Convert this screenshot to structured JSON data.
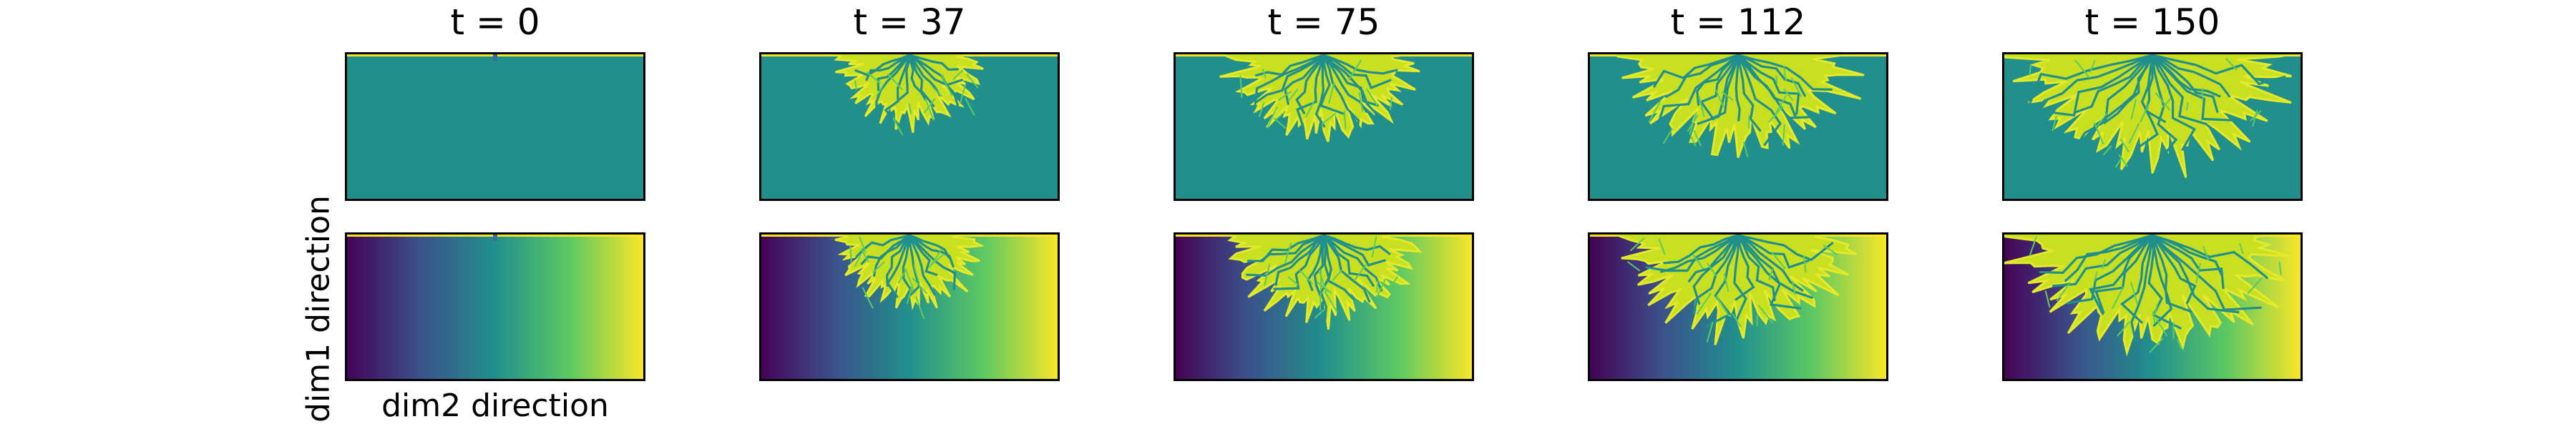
{
  "figure": {
    "type": "image_grid",
    "columns": [
      {
        "title": "t = 0",
        "t": 0,
        "growth": 0.0
      },
      {
        "title": "t = 37",
        "t": 37,
        "growth": 0.42
      },
      {
        "title": "t = 75",
        "t": 75,
        "growth": 0.62
      },
      {
        "title": "t = 112",
        "t": 112,
        "growth": 0.8
      },
      {
        "title": "t = 150",
        "t": 150,
        "growth": 1.0
      }
    ],
    "rows": [
      {
        "name": "uniform-background",
        "background": "#21908d"
      },
      {
        "name": "gradient-background",
        "colormap": "viridis"
      }
    ],
    "xlabel": "dim2 direction",
    "ylabel": "dim1 direction",
    "colors": {
      "uniform": "#21908d",
      "pattern": "#c8e020",
      "pattern_light": "#e4ea2a",
      "channel": "#5ec962",
      "top_strip": "#fde725",
      "viridis": [
        "#440154",
        "#3b528b",
        "#21908d",
        "#5ec962",
        "#fde725"
      ]
    }
  }
}
